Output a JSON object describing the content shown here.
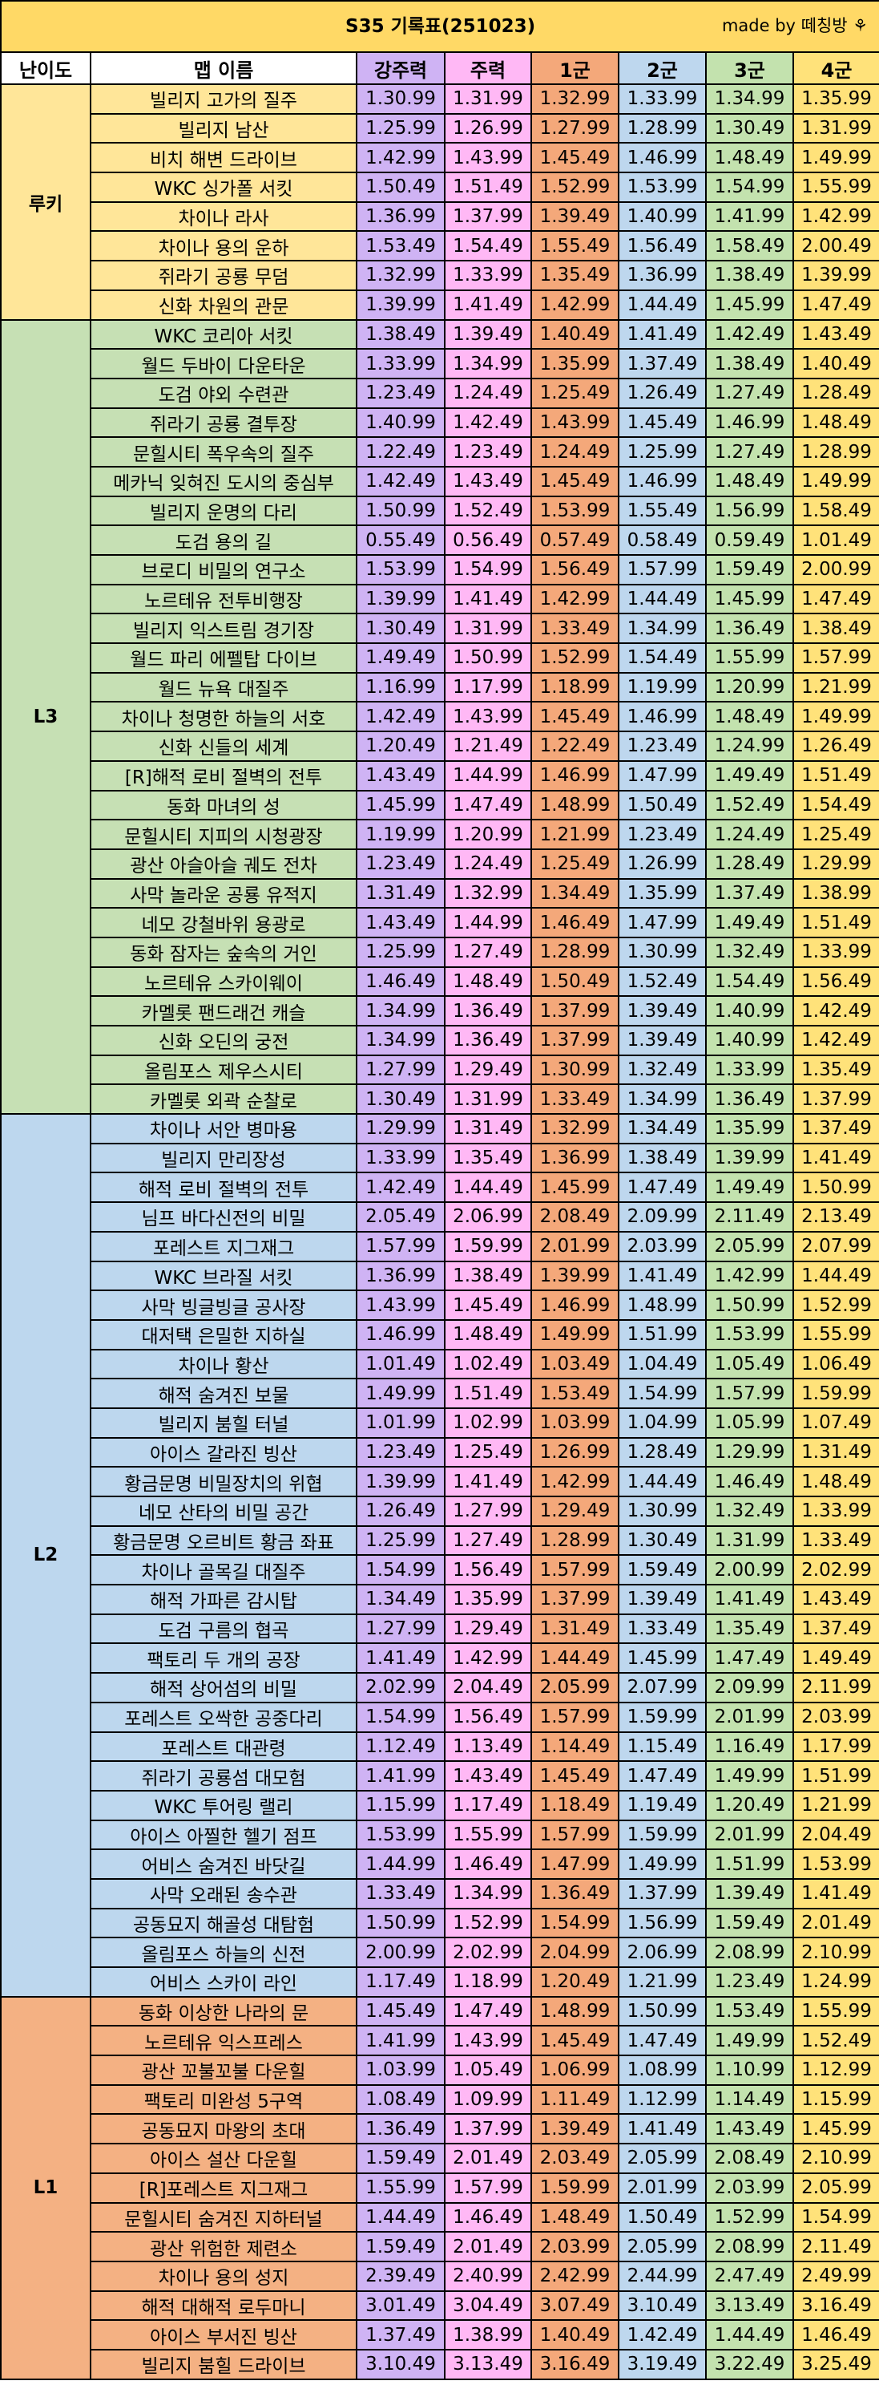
{
  "title": "S35 기록표(251023)",
  "credit": "made by 떼칭방",
  "credit_icon": "leaf-icon",
  "headers": [
    "난이도",
    "맵 이름",
    "강주력",
    "주력",
    "1군",
    "2군",
    "3군",
    "4군"
  ],
  "colors": {
    "title_bg": "#ffd966",
    "gang": "#cfb3f4",
    "ju": "#ffb8f5",
    "g1": "#f4a87a",
    "g2": "#bed7ee",
    "g3": "#c3e2ae",
    "g4": "#ffe27a",
    "rookie": "#ffe699",
    "l3": "#c6e0b4",
    "l2": "#bdd7ee",
    "l1": "#f4b183"
  },
  "groups": [
    {
      "level": "루키",
      "cls": "lv-rookie",
      "rows": [
        [
          "빌리지 고가의 질주",
          "1.30.99",
          "1.31.99",
          "1.32.99",
          "1.33.99",
          "1.34.99",
          "1.35.99"
        ],
        [
          "빌리지 남산",
          "1.25.99",
          "1.26.99",
          "1.27.99",
          "1.28.99",
          "1.30.49",
          "1.31.99"
        ],
        [
          "비치 해변 드라이브",
          "1.42.99",
          "1.43.99",
          "1.45.49",
          "1.46.99",
          "1.48.49",
          "1.49.99"
        ],
        [
          "WKC 싱가폴 서킷",
          "1.50.49",
          "1.51.49",
          "1.52.99",
          "1.53.99",
          "1.54.99",
          "1.55.99"
        ],
        [
          "차이나 라사",
          "1.36.99",
          "1.37.99",
          "1.39.49",
          "1.40.99",
          "1.41.99",
          "1.42.99"
        ],
        [
          "차이나 용의 운하",
          "1.53.49",
          "1.54.49",
          "1.55.49",
          "1.56.49",
          "1.58.49",
          "2.00.49"
        ],
        [
          "쥐라기 공룡 무덤",
          "1.32.99",
          "1.33.99",
          "1.35.49",
          "1.36.99",
          "1.38.49",
          "1.39.99"
        ],
        [
          "신화 차원의 관문",
          "1.39.99",
          "1.41.49",
          "1.42.99",
          "1.44.49",
          "1.45.99",
          "1.47.49"
        ]
      ]
    },
    {
      "level": "L3",
      "cls": "lv-l3",
      "rows": [
        [
          "WKC 코리아 서킷",
          "1.38.49",
          "1.39.49",
          "1.40.49",
          "1.41.49",
          "1.42.49",
          "1.43.49"
        ],
        [
          "월드 두바이 다운타운",
          "1.33.99",
          "1.34.99",
          "1.35.99",
          "1.37.49",
          "1.38.49",
          "1.40.49"
        ],
        [
          "도검 야외 수련관",
          "1.23.49",
          "1.24.49",
          "1.25.49",
          "1.26.49",
          "1.27.49",
          "1.28.49"
        ],
        [
          "쥐라기 공룡 결투장",
          "1.40.99",
          "1.42.49",
          "1.43.99",
          "1.45.49",
          "1.46.99",
          "1.48.49"
        ],
        [
          "문힐시티 폭우속의 질주",
          "1.22.49",
          "1.23.49",
          "1.24.49",
          "1.25.99",
          "1.27.49",
          "1.28.99"
        ],
        [
          "메카닉 잊혀진 도시의 중심부",
          "1.42.49",
          "1.43.49",
          "1.45.49",
          "1.46.99",
          "1.48.49",
          "1.49.99"
        ],
        [
          "빌리지 운명의 다리",
          "1.50.99",
          "1.52.49",
          "1.53.99",
          "1.55.49",
          "1.56.99",
          "1.58.49"
        ],
        [
          "도검 용의 길",
          "0.55.49",
          "0.56.49",
          "0.57.49",
          "0.58.49",
          "0.59.49",
          "1.01.49"
        ],
        [
          "브로디 비밀의 연구소",
          "1.53.99",
          "1.54.99",
          "1.56.49",
          "1.57.99",
          "1.59.49",
          "2.00.99"
        ],
        [
          "노르테유 전투비행장",
          "1.39.99",
          "1.41.49",
          "1.42.99",
          "1.44.49",
          "1.45.99",
          "1.47.49"
        ],
        [
          "빌리지 익스트림 경기장",
          "1.30.49",
          "1.31.99",
          "1.33.49",
          "1.34.99",
          "1.36.49",
          "1.38.49"
        ],
        [
          "월드 파리 에펠탑 다이브",
          "1.49.49",
          "1.50.99",
          "1.52.99",
          "1.54.49",
          "1.55.99",
          "1.57.99"
        ],
        [
          "월드 뉴욕 대질주",
          "1.16.99",
          "1.17.99",
          "1.18.99",
          "1.19.99",
          "1.20.99",
          "1.21.99"
        ],
        [
          "차이나 청명한 하늘의 서호",
          "1.42.49",
          "1.43.99",
          "1.45.49",
          "1.46.99",
          "1.48.49",
          "1.49.99"
        ],
        [
          "신화 신들의 세계",
          "1.20.49",
          "1.21.49",
          "1.22.49",
          "1.23.49",
          "1.24.99",
          "1.26.49"
        ],
        [
          "[R]해적 로비 절벽의 전투",
          "1.43.49",
          "1.44.99",
          "1.46.99",
          "1.47.99",
          "1.49.49",
          "1.51.49"
        ],
        [
          "동화 마녀의 성",
          "1.45.99",
          "1.47.49",
          "1.48.99",
          "1.50.49",
          "1.52.49",
          "1.54.49"
        ],
        [
          "문힐시티 지피의 시청광장",
          "1.19.99",
          "1.20.99",
          "1.21.99",
          "1.23.49",
          "1.24.49",
          "1.25.49"
        ],
        [
          "광산 아슬아슬 궤도 전차",
          "1.23.49",
          "1.24.49",
          "1.25.49",
          "1.26.99",
          "1.28.49",
          "1.29.99"
        ],
        [
          "사막 놀라운 공룡 유적지",
          "1.31.49",
          "1.32.99",
          "1.34.49",
          "1.35.99",
          "1.37.49",
          "1.38.99"
        ],
        [
          "네모 강철바위 용광로",
          "1.43.49",
          "1.44.99",
          "1.46.49",
          "1.47.99",
          "1.49.49",
          "1.51.49"
        ],
        [
          "동화 잠자는 숲속의 거인",
          "1.25.99",
          "1.27.49",
          "1.28.99",
          "1.30.99",
          "1.32.49",
          "1.33.99"
        ],
        [
          "노르테유 스카이웨이",
          "1.46.49",
          "1.48.49",
          "1.50.49",
          "1.52.49",
          "1.54.49",
          "1.56.49"
        ],
        [
          "카멜롯 팬드래건 캐슬",
          "1.34.99",
          "1.36.49",
          "1.37.99",
          "1.39.49",
          "1.40.99",
          "1.42.49"
        ],
        [
          "신화 오딘의 궁전",
          "1.34.99",
          "1.36.49",
          "1.37.99",
          "1.39.49",
          "1.40.99",
          "1.42.49"
        ],
        [
          "올림포스 제우스시티",
          "1.27.99",
          "1.29.49",
          "1.30.99",
          "1.32.49",
          "1.33.99",
          "1.35.49"
        ],
        [
          "카멜롯 외곽 순찰로",
          "1.30.49",
          "1.31.99",
          "1.33.49",
          "1.34.99",
          "1.36.49",
          "1.37.99"
        ]
      ]
    },
    {
      "level": "L2",
      "cls": "lv-l2",
      "rows": [
        [
          "차이나 서안 병마용",
          "1.29.99",
          "1.31.49",
          "1.32.99",
          "1.34.49",
          "1.35.99",
          "1.37.49"
        ],
        [
          "빌리지 만리장성",
          "1.33.99",
          "1.35.49",
          "1.36.99",
          "1.38.49",
          "1.39.99",
          "1.41.49"
        ],
        [
          "해적 로비 절벽의 전투",
          "1.42.49",
          "1.44.49",
          "1.45.99",
          "1.47.49",
          "1.49.49",
          "1.50.99"
        ],
        [
          "님프 바다신전의 비밀",
          "2.05.49",
          "2.06.99",
          "2.08.49",
          "2.09.99",
          "2.11.49",
          "2.13.49"
        ],
        [
          "포레스트 지그재그",
          "1.57.99",
          "1.59.99",
          "2.01.99",
          "2.03.99",
          "2.05.99",
          "2.07.99"
        ],
        [
          "WKC 브라질 서킷",
          "1.36.99",
          "1.38.49",
          "1.39.99",
          "1.41.49",
          "1.42.99",
          "1.44.49"
        ],
        [
          "사막 빙글빙글 공사장",
          "1.43.99",
          "1.45.49",
          "1.46.99",
          "1.48.99",
          "1.50.99",
          "1.52.99"
        ],
        [
          "대저택 은밀한 지하실",
          "1.46.99",
          "1.48.49",
          "1.49.99",
          "1.51.99",
          "1.53.99",
          "1.55.99"
        ],
        [
          "차이나 황산",
          "1.01.49",
          "1.02.49",
          "1.03.49",
          "1.04.49",
          "1.05.49",
          "1.06.49"
        ],
        [
          "해적 숨겨진 보물",
          "1.49.99",
          "1.51.49",
          "1.53.49",
          "1.54.99",
          "1.57.99",
          "1.59.99"
        ],
        [
          "빌리지 붐힐 터널",
          "1.01.99",
          "1.02.99",
          "1.03.99",
          "1.04.99",
          "1.05.99",
          "1.07.49"
        ],
        [
          "아이스 갈라진 빙산",
          "1.23.49",
          "1.25.49",
          "1.26.99",
          "1.28.49",
          "1.29.99",
          "1.31.49"
        ],
        [
          "황금문명 비밀장치의 위협",
          "1.39.99",
          "1.41.49",
          "1.42.99",
          "1.44.49",
          "1.46.49",
          "1.48.49"
        ],
        [
          "네모 산타의 비밀 공간",
          "1.26.49",
          "1.27.99",
          "1.29.49",
          "1.30.99",
          "1.32.49",
          "1.33.99"
        ],
        [
          "황금문명 오르비트 황금 좌표",
          "1.25.99",
          "1.27.49",
          "1.28.99",
          "1.30.49",
          "1.31.99",
          "1.33.49"
        ],
        [
          "차이나 골목길 대질주",
          "1.54.99",
          "1.56.49",
          "1.57.99",
          "1.59.49",
          "2.00.99",
          "2.02.99"
        ],
        [
          "해적 가파른 감시탑",
          "1.34.49",
          "1.35.99",
          "1.37.99",
          "1.39.49",
          "1.41.49",
          "1.43.49"
        ],
        [
          "도검 구름의 협곡",
          "1.27.99",
          "1.29.49",
          "1.31.49",
          "1.33.49",
          "1.35.49",
          "1.37.49"
        ],
        [
          "팩토리 두 개의 공장",
          "1.41.49",
          "1.42.99",
          "1.44.49",
          "1.45.99",
          "1.47.49",
          "1.49.49"
        ],
        [
          "해적 상어섬의 비밀",
          "2.02.99",
          "2.04.49",
          "2.05.99",
          "2.07.99",
          "2.09.99",
          "2.11.99"
        ],
        [
          "포레스트 오싹한 공중다리",
          "1.54.99",
          "1.56.49",
          "1.57.99",
          "1.59.99",
          "2.01.99",
          "2.03.99"
        ],
        [
          "포레스트 대관령",
          "1.12.49",
          "1.13.49",
          "1.14.49",
          "1.15.49",
          "1.16.49",
          "1.17.99"
        ],
        [
          "쥐라기 공룡섬 대모험",
          "1.41.99",
          "1.43.49",
          "1.45.49",
          "1.47.49",
          "1.49.99",
          "1.51.99"
        ],
        [
          "WKC 투어링 랠리",
          "1.15.99",
          "1.17.49",
          "1.18.49",
          "1.19.49",
          "1.20.49",
          "1.21.99"
        ],
        [
          "아이스 아찔한 헬기 점프",
          "1.53.99",
          "1.55.99",
          "1.57.99",
          "1.59.99",
          "2.01.99",
          "2.04.49"
        ],
        [
          "어비스 숨겨진 바닷길",
          "1.44.99",
          "1.46.49",
          "1.47.99",
          "1.49.99",
          "1.51.99",
          "1.53.99"
        ],
        [
          "사막 오래된 송수관",
          "1.33.49",
          "1.34.99",
          "1.36.49",
          "1.37.99",
          "1.39.49",
          "1.41.49"
        ],
        [
          "공동묘지 해골성 대탐험",
          "1.50.99",
          "1.52.99",
          "1.54.99",
          "1.56.99",
          "1.59.49",
          "2.01.49"
        ],
        [
          "올림포스 하늘의 신전",
          "2.00.99",
          "2.02.99",
          "2.04.99",
          "2.06.99",
          "2.08.99",
          "2.10.99"
        ],
        [
          "어비스 스카이 라인",
          "1.17.49",
          "1.18.99",
          "1.20.49",
          "1.21.99",
          "1.23.49",
          "1.24.99"
        ]
      ]
    },
    {
      "level": "L1",
      "cls": "lv-l1",
      "rows": [
        [
          "동화 이상한 나라의 문",
          "1.45.49",
          "1.47.49",
          "1.48.99",
          "1.50.99",
          "1.53.49",
          "1.55.99"
        ],
        [
          "노르테유 익스프레스",
          "1.41.99",
          "1.43.99",
          "1.45.49",
          "1.47.49",
          "1.49.99",
          "1.52.49"
        ],
        [
          "광산 꼬불꼬불 다운힐",
          "1.03.99",
          "1.05.49",
          "1.06.99",
          "1.08.99",
          "1.10.99",
          "1.12.99"
        ],
        [
          "팩토리 미완성 5구역",
          "1.08.49",
          "1.09.99",
          "1.11.49",
          "1.12.99",
          "1.14.49",
          "1.15.99"
        ],
        [
          "공동묘지 마왕의 초대",
          "1.36.49",
          "1.37.99",
          "1.39.49",
          "1.41.49",
          "1.43.49",
          "1.45.99"
        ],
        [
          "아이스 설산 다운힐",
          "1.59.49",
          "2.01.49",
          "2.03.49",
          "2.05.99",
          "2.08.49",
          "2.10.99"
        ],
        [
          "[R]포레스트 지그재그",
          "1.55.99",
          "1.57.99",
          "1.59.99",
          "2.01.99",
          "2.03.99",
          "2.05.99"
        ],
        [
          "문힐시티 숨겨진 지하터널",
          "1.44.49",
          "1.46.49",
          "1.48.49",
          "1.50.49",
          "1.52.99",
          "1.54.99"
        ],
        [
          "광산 위험한 제련소",
          "1.59.49",
          "2.01.49",
          "2.03.99",
          "2.05.99",
          "2.08.99",
          "2.11.49"
        ],
        [
          "차이나 용의 성지",
          "2.39.49",
          "2.40.99",
          "2.42.99",
          "2.44.99",
          "2.47.49",
          "2.49.99"
        ],
        [
          "해적 대해적 로두마니",
          "3.01.49",
          "3.04.49",
          "3.07.49",
          "3.10.49",
          "3.13.49",
          "3.16.49"
        ],
        [
          "아이스 부서진 빙산",
          "1.37.49",
          "1.38.99",
          "1.40.49",
          "1.42.49",
          "1.44.49",
          "1.46.49"
        ],
        [
          "빌리지 붐힐 드라이브",
          "3.10.49",
          "3.13.49",
          "3.16.49",
          "3.19.49",
          "3.22.49",
          "3.25.49"
        ]
      ]
    }
  ]
}
